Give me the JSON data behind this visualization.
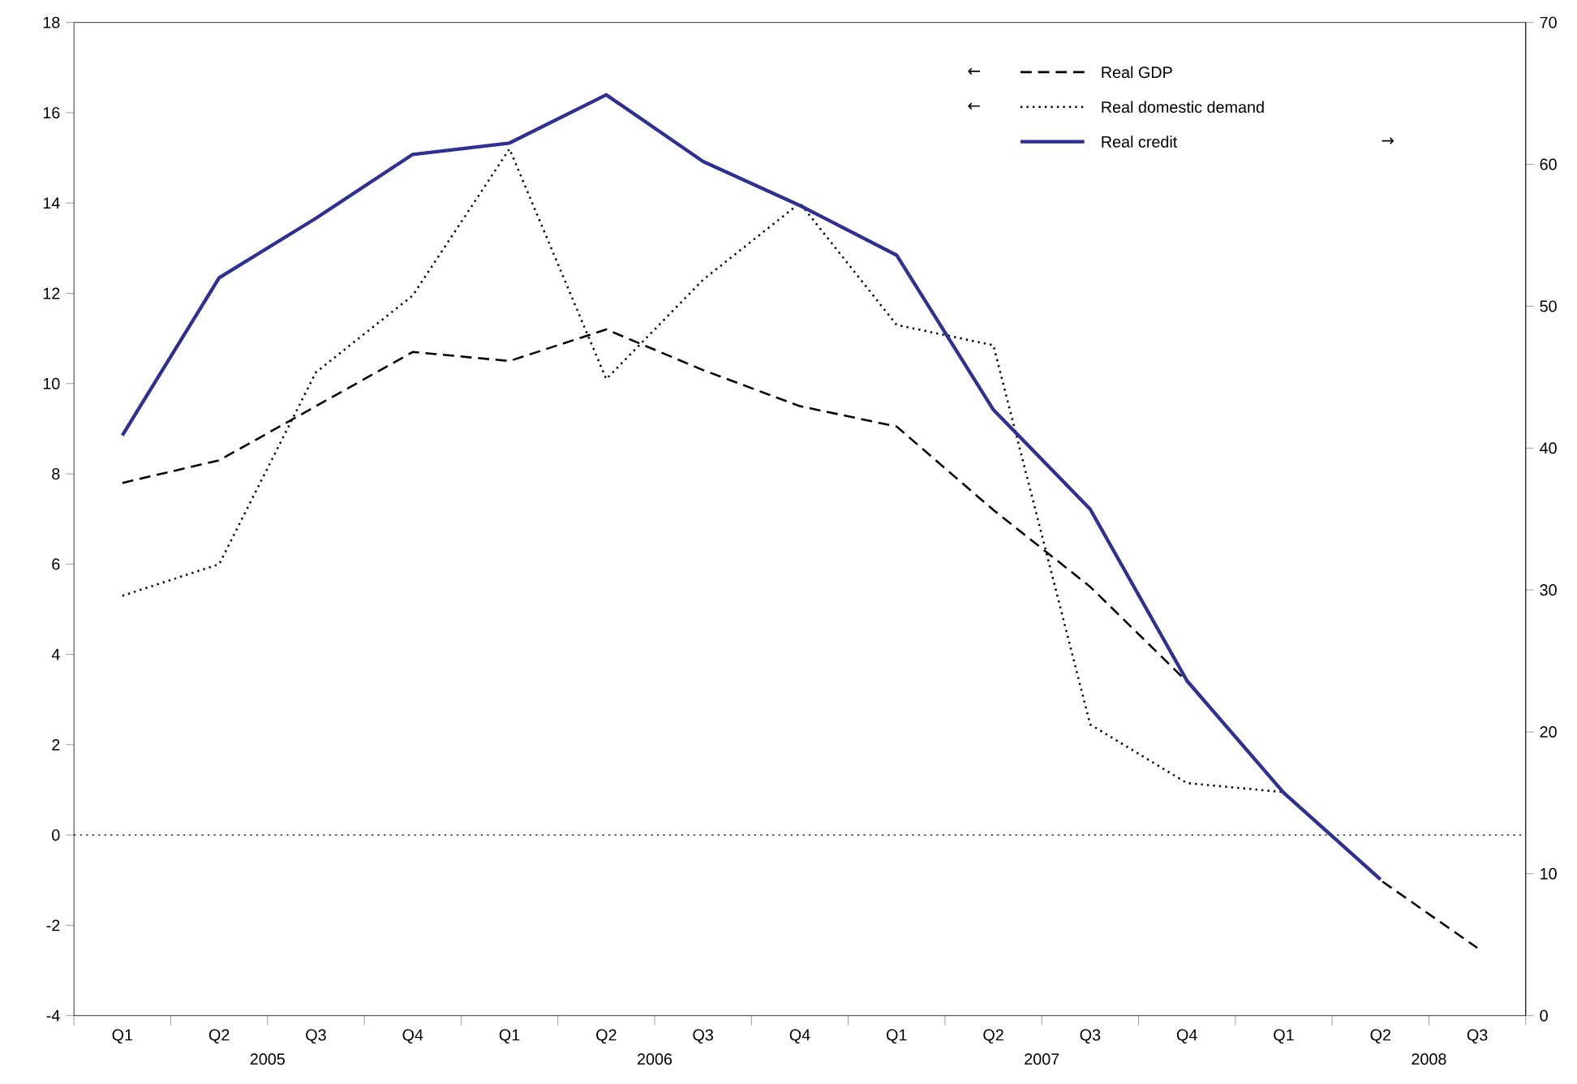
{
  "chart_data": {
    "type": "line",
    "categories": [
      "Q1",
      "Q2",
      "Q3",
      "Q4",
      "Q1",
      "Q2",
      "Q3",
      "Q4",
      "Q1",
      "Q2",
      "Q3",
      "Q4",
      "Q1",
      "Q2",
      "Q3"
    ],
    "series": [
      {
        "name": "Real GDP",
        "color": "#000000",
        "line_style": "dashed",
        "values": [
          7.8,
          8.3,
          9.5,
          10.7,
          10.5,
          11.2,
          10.3,
          9.5,
          9.05,
          7.2,
          5.5,
          3.4,
          0.95,
          -1.0,
          -2.5
        ]
      },
      {
        "name": "Real domestic demand",
        "color": "#000000",
        "line_style": "dotted",
        "values": [
          5.3,
          6.0,
          10.25,
          11.95,
          15.2,
          10.1,
          12.3,
          14.0,
          11.3,
          10.85,
          2.45,
          1.15,
          0.95,
          null,
          null
        ]
      },
      {
        "name": "Real credit",
        "color": "#2e3192",
        "line_style": "solid",
        "axis": "y2",
        "values": [
          40.9,
          52.0,
          56.2,
          60.7,
          61.5,
          64.9,
          60.2,
          57.1,
          53.6,
          42.7,
          35.7,
          23.6,
          15.7,
          9.6,
          null
        ]
      }
    ],
    "ylim": [
      -4,
      18
    ],
    "yticks": [
      -4,
      -2,
      0,
      2,
      4,
      6,
      8,
      10,
      12,
      14,
      16,
      18
    ],
    "y2lim": [
      0,
      70
    ],
    "y2ticks": [
      0,
      10,
      20,
      30,
      40,
      50,
      60,
      70
    ],
    "ref_lines": [
      {
        "axis": "y",
        "value": 0,
        "line_style": "dotted",
        "color": "#000000"
      }
    ],
    "annotations": [
      "←",
      "←",
      "→",
      "2005",
      "2006",
      "2007",
      "2008"
    ],
    "legend": "top right",
    "marker": "none",
    "grid": false
  }
}
